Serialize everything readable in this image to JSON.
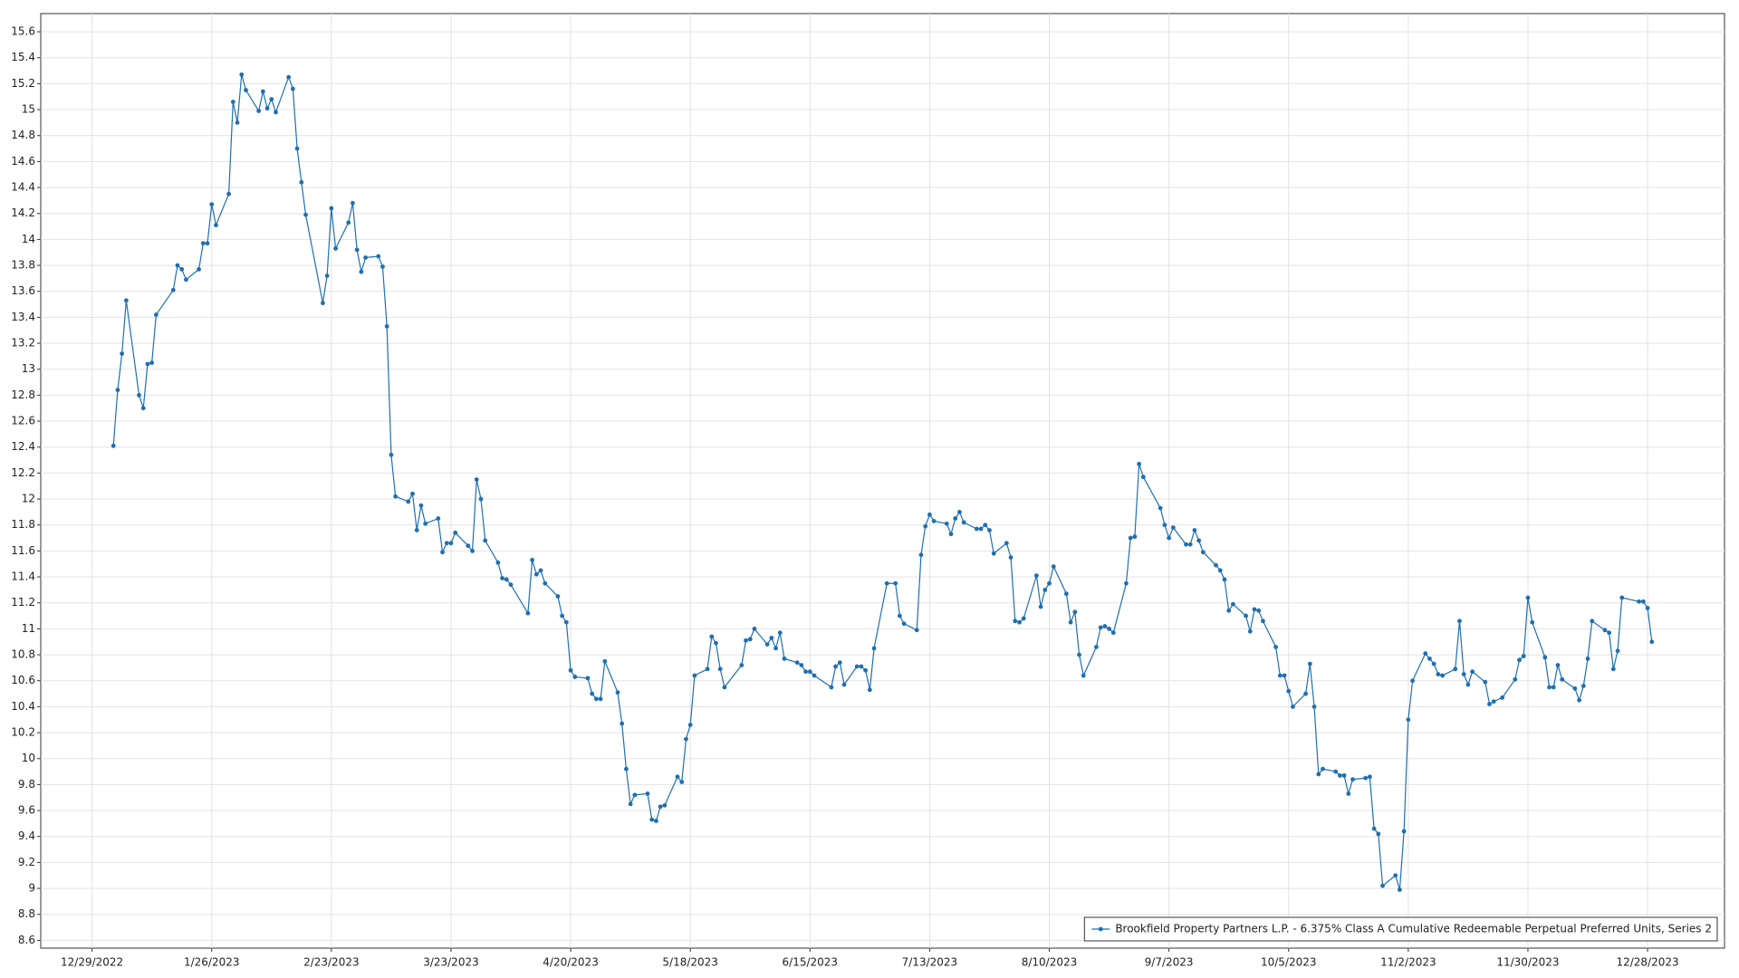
{
  "chart_data": {
    "type": "line",
    "x": [
      "1/3/2023",
      "1/4/2023",
      "1/5/2023",
      "1/6/2023",
      "1/9/2023",
      "1/10/2023",
      "1/11/2023",
      "1/12/2023",
      "1/13/2023",
      "1/17/2023",
      "1/18/2023",
      "1/19/2023",
      "1/20/2023",
      "1/23/2023",
      "1/24/2023",
      "1/25/2023",
      "1/26/2023",
      "1/27/2023",
      "1/30/2023",
      "1/31/2023",
      "2/1/2023",
      "2/2/2023",
      "2/3/2023",
      "2/6/2023",
      "2/7/2023",
      "2/8/2023",
      "2/9/2023",
      "2/10/2023",
      "2/13/2023",
      "2/14/2023",
      "2/15/2023",
      "2/16/2023",
      "2/17/2023",
      "2/21/2023",
      "2/22/2023",
      "2/23/2023",
      "2/24/2023",
      "2/27/2023",
      "2/28/2023",
      "3/1/2023",
      "3/2/2023",
      "3/3/2023",
      "3/6/2023",
      "3/7/2023",
      "3/8/2023",
      "3/9/2023",
      "3/10/2023",
      "3/13/2023",
      "3/14/2023",
      "3/15/2023",
      "3/16/2023",
      "3/17/2023",
      "3/20/2023",
      "3/21/2023",
      "3/22/2023",
      "3/23/2023",
      "3/24/2023",
      "3/27/2023",
      "3/28/2023",
      "3/29/2023",
      "3/30/2023",
      "3/31/2023",
      "4/3/2023",
      "4/4/2023",
      "4/5/2023",
      "4/6/2023",
      "4/10/2023",
      "4/11/2023",
      "4/12/2023",
      "4/13/2023",
      "4/14/2023",
      "4/17/2023",
      "4/18/2023",
      "4/19/2023",
      "4/20/2023",
      "4/21/2023",
      "4/24/2023",
      "4/25/2023",
      "4/26/2023",
      "4/27/2023",
      "4/28/2023",
      "5/1/2023",
      "5/2/2023",
      "5/3/2023",
      "5/4/2023",
      "5/5/2023",
      "5/8/2023",
      "5/9/2023",
      "5/10/2023",
      "5/11/2023",
      "5/12/2023",
      "5/15/2023",
      "5/16/2023",
      "5/17/2023",
      "5/18/2023",
      "5/19/2023",
      "5/22/2023",
      "5/23/2023",
      "5/24/2023",
      "5/25/2023",
      "5/26/2023",
      "5/30/2023",
      "5/31/2023",
      "6/1/2023",
      "6/2/2023",
      "6/5/2023",
      "6/6/2023",
      "6/7/2023",
      "6/8/2023",
      "6/9/2023",
      "6/12/2023",
      "6/13/2023",
      "6/14/2023",
      "6/15/2023",
      "6/16/2023",
      "6/20/2023",
      "6/21/2023",
      "6/22/2023",
      "6/23/2023",
      "6/26/2023",
      "6/27/2023",
      "6/28/2023",
      "6/29/2023",
      "6/30/2023",
      "7/3/2023",
      "7/5/2023",
      "7/6/2023",
      "7/7/2023",
      "7/10/2023",
      "7/11/2023",
      "7/12/2023",
      "7/13/2023",
      "7/14/2023",
      "7/17/2023",
      "7/18/2023",
      "7/19/2023",
      "7/20/2023",
      "7/21/2023",
      "7/24/2023",
      "7/25/2023",
      "7/26/2023",
      "7/27/2023",
      "7/28/2023",
      "7/31/2023",
      "8/1/2023",
      "8/2/2023",
      "8/3/2023",
      "8/4/2023",
      "8/7/2023",
      "8/8/2023",
      "8/9/2023",
      "8/10/2023",
      "8/11/2023",
      "8/14/2023",
      "8/15/2023",
      "8/16/2023",
      "8/17/2023",
      "8/18/2023",
      "8/21/2023",
      "8/22/2023",
      "8/23/2023",
      "8/24/2023",
      "8/25/2023",
      "8/28/2023",
      "8/29/2023",
      "8/30/2023",
      "8/31/2023",
      "9/1/2023",
      "9/5/2023",
      "9/6/2023",
      "9/7/2023",
      "9/8/2023",
      "9/11/2023",
      "9/12/2023",
      "9/13/2023",
      "9/14/2023",
      "9/15/2023",
      "9/18/2023",
      "9/19/2023",
      "9/20/2023",
      "9/21/2023",
      "9/22/2023",
      "9/25/2023",
      "9/26/2023",
      "9/27/2023",
      "9/28/2023",
      "9/29/2023",
      "10/2/2023",
      "10/3/2023",
      "10/4/2023",
      "10/5/2023",
      "10/6/2023",
      "10/9/2023",
      "10/10/2023",
      "10/11/2023",
      "10/12/2023",
      "10/13/2023",
      "10/16/2023",
      "10/17/2023",
      "10/18/2023",
      "10/19/2023",
      "10/20/2023",
      "10/23/2023",
      "10/24/2023",
      "10/25/2023",
      "10/26/2023",
      "10/27/2023",
      "10/30/2023",
      "10/31/2023",
      "11/1/2023",
      "11/2/2023",
      "11/3/2023",
      "11/6/2023",
      "11/7/2023",
      "11/8/2023",
      "11/9/2023",
      "11/10/2023",
      "11/13/2023",
      "11/14/2023",
      "11/15/2023",
      "11/16/2023",
      "11/17/2023",
      "11/20/2023",
      "11/21/2023",
      "11/22/2023",
      "11/24/2023",
      "11/27/2023",
      "11/28/2023",
      "11/29/2023",
      "11/30/2023",
      "12/1/2023",
      "12/4/2023",
      "12/5/2023",
      "12/6/2023",
      "12/7/2023",
      "12/8/2023",
      "12/11/2023",
      "12/12/2023",
      "12/13/2023",
      "12/14/2023",
      "12/15/2023",
      "12/18/2023",
      "12/19/2023",
      "12/20/2023",
      "12/21/2023",
      "12/22/2023",
      "12/26/2023",
      "12/27/2023",
      "12/28/2023",
      "12/29/2023"
    ],
    "series": [
      {
        "name": "Brookfield Property Partners L.P. - 6.375% Class A Cumulative Redeemable Perpetual Preferred Units, Series 2",
        "color": "#1f6fb0",
        "values": [
          12.41,
          12.84,
          13.12,
          13.53,
          12.8,
          12.7,
          13.04,
          13.05,
          13.42,
          13.61,
          13.8,
          13.77,
          13.69,
          13.77,
          13.97,
          13.97,
          14.27,
          14.11,
          14.35,
          15.06,
          14.9,
          15.27,
          15.15,
          14.99,
          15.14,
          15.01,
          15.08,
          14.98,
          15.25,
          15.16,
          14.7,
          14.44,
          14.19,
          13.51,
          13.72,
          14.24,
          13.93,
          14.13,
          14.28,
          13.92,
          13.75,
          13.86,
          13.87,
          13.79,
          13.33,
          12.34,
          12.02,
          11.98,
          12.04,
          11.76,
          11.95,
          11.81,
          11.85,
          11.59,
          11.66,
          11.66,
          11.74,
          11.64,
          11.6,
          12.15,
          12.0,
          11.68,
          11.51,
          11.39,
          11.38,
          11.34,
          11.12,
          11.53,
          11.42,
          11.45,
          11.35,
          11.25,
          11.1,
          11.05,
          10.68,
          10.63,
          10.62,
          10.5,
          10.46,
          10.46,
          10.75,
          10.51,
          10.27,
          9.92,
          9.65,
          9.72,
          9.73,
          9.53,
          9.52,
          9.63,
          9.64,
          9.86,
          9.82,
          10.15,
          10.26,
          10.64,
          10.69,
          10.94,
          10.89,
          10.69,
          10.55,
          10.72,
          10.91,
          10.92,
          11.0,
          10.88,
          10.93,
          10.85,
          10.97,
          10.77,
          10.74,
          10.72,
          10.67,
          10.67,
          10.64,
          10.55,
          10.71,
          10.74,
          10.57,
          10.71,
          10.71,
          10.68,
          10.53,
          10.85,
          11.35,
          11.35,
          11.1,
          11.04,
          10.99,
          11.57,
          11.79,
          11.88,
          11.83,
          11.81,
          11.73,
          11.85,
          11.9,
          11.82,
          11.77,
          11.77,
          11.8,
          11.76,
          11.58,
          11.66,
          11.55,
          11.06,
          11.05,
          11.08,
          11.41,
          11.17,
          11.3,
          11.35,
          11.48,
          11.27,
          11.05,
          11.13,
          10.8,
          10.64,
          10.86,
          11.01,
          11.02,
          11.0,
          10.97,
          11.35,
          11.7,
          11.71,
          12.27,
          12.17,
          11.93,
          11.8,
          11.7,
          11.78,
          11.65,
          11.65,
          11.76,
          11.68,
          11.59,
          11.49,
          11.45,
          11.38,
          11.14,
          11.19,
          11.1,
          10.98,
          11.15,
          11.14,
          11.06,
          10.86,
          10.64,
          10.64,
          10.52,
          10.4,
          10.5,
          10.73,
          10.4,
          9.88,
          9.92,
          9.9,
          9.87,
          9.87,
          9.73,
          9.84,
          9.85,
          9.86,
          9.46,
          9.42,
          9.02,
          9.1,
          8.99,
          9.44,
          10.3,
          10.6,
          10.81,
          10.77,
          10.73,
          10.65,
          10.64,
          10.69,
          11.06,
          10.65,
          10.57,
          10.67,
          10.59,
          10.42,
          10.44,
          10.47,
          10.61,
          10.76,
          10.79,
          11.24,
          11.05,
          10.78,
          10.55,
          10.55,
          10.72,
          10.61,
          10.54,
          10.45,
          10.56,
          10.77,
          11.06,
          10.99,
          10.97,
          10.69,
          10.83,
          11.24,
          11.21,
          11.21,
          11.16,
          10.9
        ]
      }
    ],
    "xlim": [
      "12/17/2022",
      "1/15/2024"
    ],
    "xticks": [
      "12/29/2022",
      "1/26/2023",
      "2/23/2023",
      "3/23/2023",
      "4/20/2023",
      "5/18/2023",
      "6/15/2023",
      "7/13/2023",
      "8/10/2023",
      "9/7/2023",
      "10/5/2023",
      "11/2/2023",
      "11/30/2023",
      "12/28/2023"
    ],
    "ylim": [
      8.54,
      15.74
    ],
    "yticks": [
      8.6,
      8.8,
      9,
      9.2,
      9.4,
      9.6,
      9.8,
      10,
      10.2,
      10.4,
      10.6,
      10.8,
      11,
      11.2,
      11.4,
      11.6,
      11.8,
      12,
      12.2,
      12.4,
      12.6,
      12.8,
      13,
      13.2,
      13.4,
      13.6,
      13.8,
      14,
      14.2,
      14.4,
      14.6,
      14.8,
      15,
      15.2,
      15.4,
      15.6
    ],
    "grid": true,
    "legend": "lower right"
  }
}
